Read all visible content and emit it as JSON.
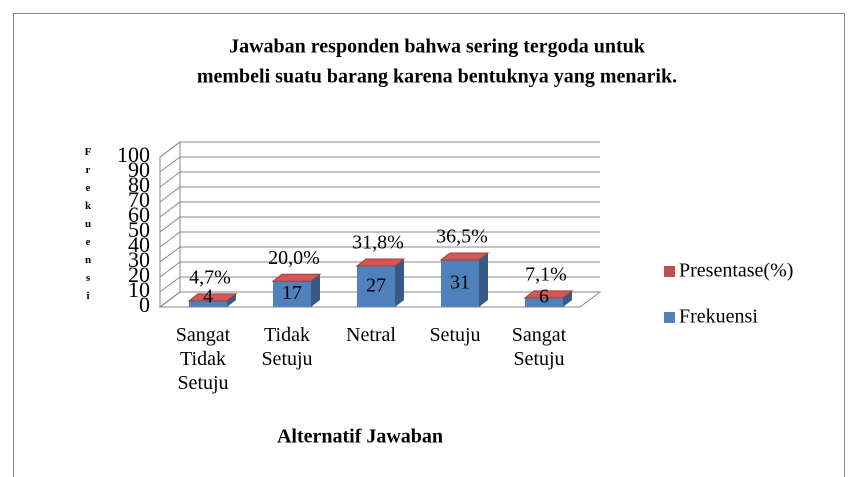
{
  "chart_data": {
    "type": "bar3d_stacked",
    "title": [
      "Jawaban responden  bahwa sering tergoda untuk",
      "membeli suatu barang karena bentuknya yang menarik."
    ],
    "y_label": "Frekuensi",
    "x_label": "Alternatif Jawaban",
    "categories": [
      "Sangat Tidak Setuju",
      "Tidak Setuju",
      "Netral",
      "Setuju",
      "Sangat Setuju"
    ],
    "series": [
      {
        "name": "Frekuensi",
        "color": "#4f81bd",
        "values": [
          4,
          17,
          27,
          31,
          6
        ]
      },
      {
        "name": "Presentase(%)",
        "color": "#c0504d",
        "values": [
          0.047,
          0.2,
          0.318,
          0.365,
          0.071
        ],
        "value_labels": [
          "4,7%",
          "20,0%",
          "31,8%",
          "36,5%",
          "7,1%"
        ]
      }
    ],
    "ylim": [
      0,
      100
    ],
    "yticks": [
      0,
      10,
      20,
      30,
      40,
      50,
      60,
      70,
      80,
      90,
      100
    ],
    "grid": true,
    "legend": "right"
  }
}
